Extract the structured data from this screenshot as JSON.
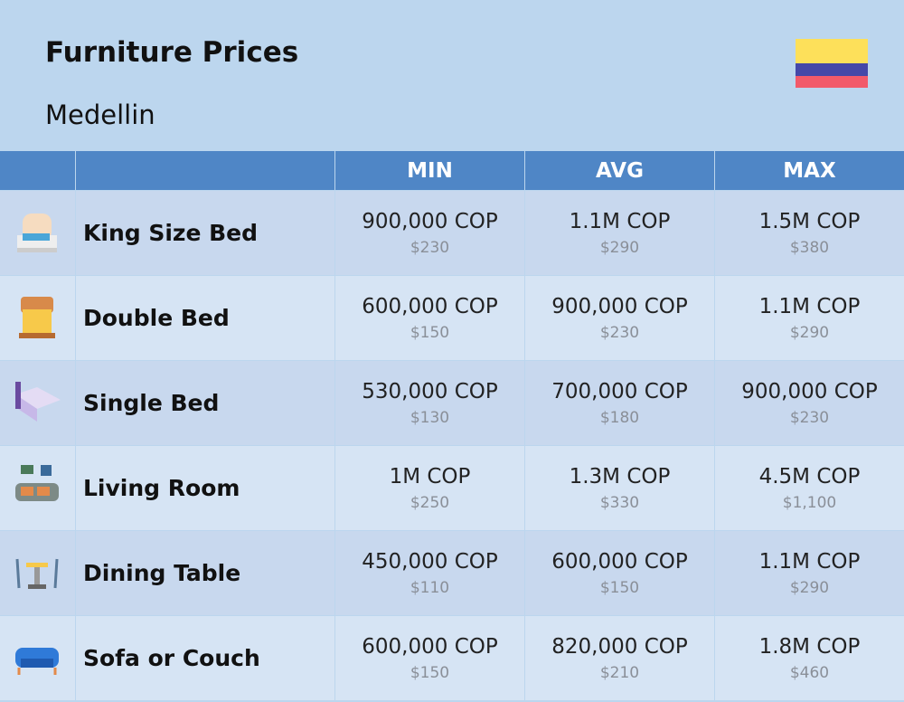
{
  "header": {
    "title": "Furniture Prices",
    "subtitle": "Medellin"
  },
  "table": {
    "columns": [
      "MIN",
      "AVG",
      "MAX"
    ],
    "rows": [
      {
        "name": "King Size Bed",
        "cells": [
          {
            "local": "900,000 COP",
            "usd": "$230"
          },
          {
            "local": "1.1M COP",
            "usd": "$290"
          },
          {
            "local": "1.5M COP",
            "usd": "$380"
          }
        ]
      },
      {
        "name": "Double Bed",
        "cells": [
          {
            "local": "600,000 COP",
            "usd": "$150"
          },
          {
            "local": "900,000 COP",
            "usd": "$230"
          },
          {
            "local": "1.1M COP",
            "usd": "$290"
          }
        ]
      },
      {
        "name": "Single Bed",
        "cells": [
          {
            "local": "530,000 COP",
            "usd": "$130"
          },
          {
            "local": "700,000 COP",
            "usd": "$180"
          },
          {
            "local": "900,000 COP",
            "usd": "$230"
          }
        ]
      },
      {
        "name": "Living Room",
        "cells": [
          {
            "local": "1M COP",
            "usd": "$250"
          },
          {
            "local": "1.3M COP",
            "usd": "$330"
          },
          {
            "local": "4.5M COP",
            "usd": "$1,100"
          }
        ]
      },
      {
        "name": "Dining Table",
        "cells": [
          {
            "local": "450,000 COP",
            "usd": "$110"
          },
          {
            "local": "600,000 COP",
            "usd": "$150"
          },
          {
            "local": "1.1M COP",
            "usd": "$290"
          }
        ]
      },
      {
        "name": "Sofa or Couch",
        "cells": [
          {
            "local": "600,000 COP",
            "usd": "$150"
          },
          {
            "local": "820,000 COP",
            "usd": "$210"
          },
          {
            "local": "1.8M COP",
            "usd": "$460"
          }
        ]
      }
    ]
  }
}
